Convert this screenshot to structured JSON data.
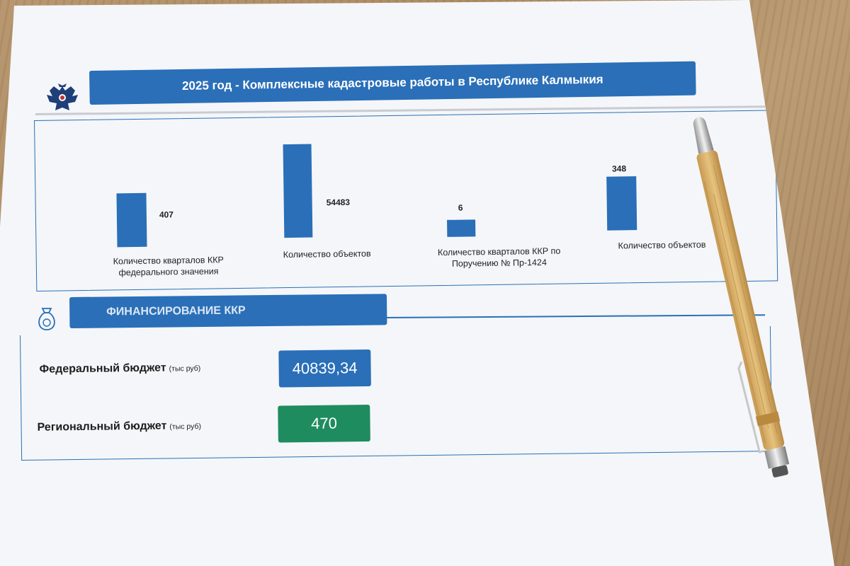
{
  "header": {
    "title": "2025 год  -  Комплексные кадастровые работы в Республике Калмыкия"
  },
  "chart_data": {
    "type": "bar",
    "title": "",
    "items": [
      {
        "label": "Количество кварталов ККР федерального значения",
        "value": 407
      },
      {
        "label": "Количество объектов",
        "value": 54483
      },
      {
        "label": "Количество кварталов ККР по Поручению № Пр-1424",
        "value": 6
      },
      {
        "label": "Количество объектов",
        "value": 348
      }
    ]
  },
  "financing": {
    "section_title": "ФИНАНСИРОВАНИЕ ККР",
    "rows": [
      {
        "label": "Федеральный бюджет",
        "unit": "(тыс руб)",
        "value": "40839,34",
        "color": "#2a6fb8"
      },
      {
        "label": "Региональный бюджет",
        "unit": "(тыс руб)",
        "value": "470",
        "color": "#1e8c5f"
      }
    ]
  },
  "colors": {
    "accent": "#2a6fb8",
    "green": "#1e8c5f"
  },
  "icons": {
    "emblem": "double-headed-eagle-icon",
    "money": "money-bag-icon"
  }
}
